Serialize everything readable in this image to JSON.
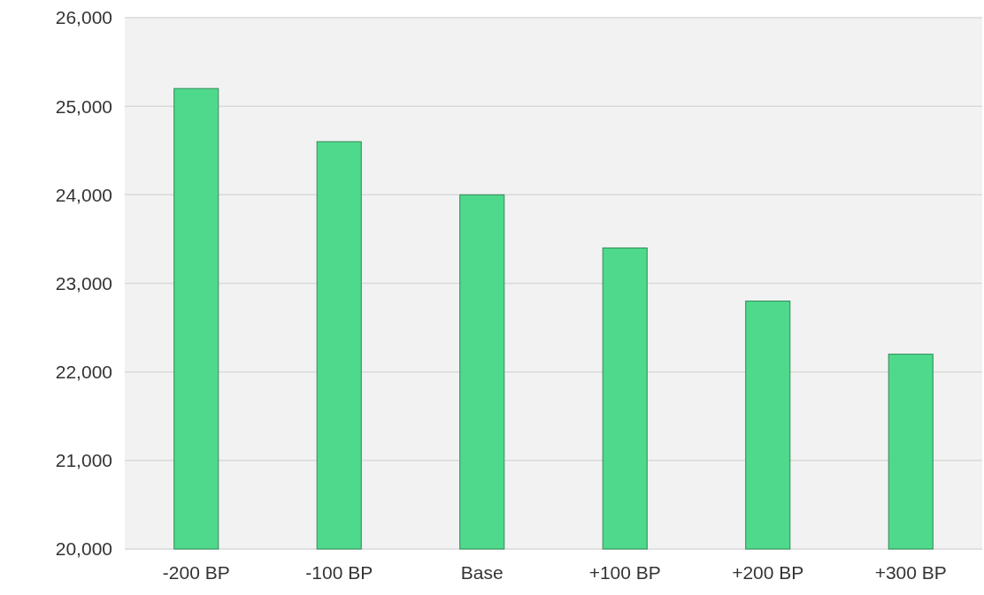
{
  "chart_data": {
    "type": "bar",
    "categories": [
      "-200 BP",
      "-100 BP",
      "Base",
      "+100 BP",
      "+200 BP",
      "+300 BP"
    ],
    "values": [
      25200,
      24600,
      24000,
      23400,
      22800,
      22200
    ],
    "color": "#4fd98c",
    "ylim": [
      20000,
      26000
    ],
    "yticks": [
      {
        "value": 20000,
        "label": "20,000"
      },
      {
        "value": 21000,
        "label": "21,000"
      },
      {
        "value": 22000,
        "label": "22,000"
      },
      {
        "value": 23000,
        "label": "23,000"
      },
      {
        "value": 24000,
        "label": "24,000"
      },
      {
        "value": 25000,
        "label": "25,000"
      },
      {
        "value": 26000,
        "label": "26,000"
      }
    ],
    "grid": "y"
  }
}
